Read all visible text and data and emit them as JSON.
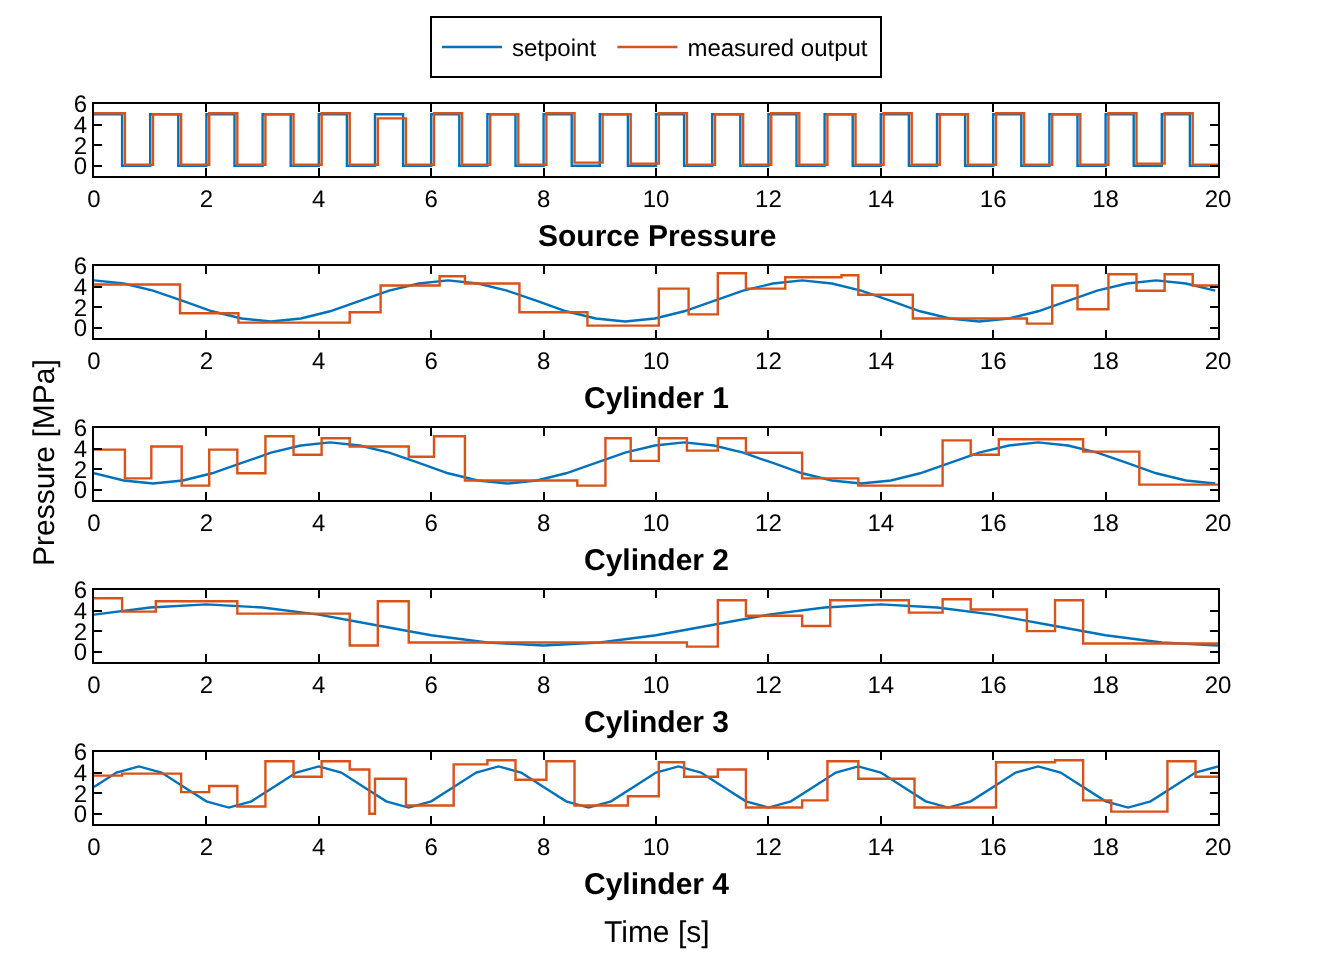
{
  "chart_data": [
    {
      "type": "step",
      "title": "Source Pressure",
      "legend": "top",
      "xlim": [
        0,
        20
      ],
      "ylim": [
        -1,
        6
      ],
      "xticks": [
        0,
        2,
        4,
        6,
        8,
        10,
        12,
        14,
        16,
        18,
        20
      ],
      "yticks": [
        0,
        2,
        4,
        6
      ],
      "grid": false,
      "series": [
        {
          "name": "setpoint",
          "color": "#0072bd",
          "x": [
            0,
            0.5,
            1,
            1.5,
            2,
            2.5,
            3,
            3.5,
            4,
            4.5,
            5,
            5.5,
            6,
            6.5,
            7,
            7.5,
            8,
            8.5,
            9,
            9.5,
            10,
            10.5,
            11,
            11.5,
            12,
            12.5,
            13,
            13.5,
            14,
            14.5,
            15,
            15.5,
            16,
            16.5,
            17,
            17.5,
            18,
            18.5,
            19,
            19.5,
            20
          ],
          "values": [
            5,
            0,
            5,
            0,
            5,
            0,
            5,
            0,
            5,
            0,
            5,
            0,
            5,
            0,
            5,
            0,
            5,
            0,
            5,
            0,
            5,
            0,
            5,
            0,
            5,
            0,
            5,
            0,
            5,
            0,
            5,
            0,
            5,
            0,
            5,
            0,
            5,
            0,
            5,
            0,
            0
          ]
        },
        {
          "name": "measured output",
          "color": "#d95319",
          "x": [
            0,
            0.55,
            1.05,
            1.55,
            2.05,
            2.55,
            3.05,
            3.55,
            4.05,
            4.55,
            5.05,
            5.55,
            6.05,
            6.55,
            7.05,
            7.55,
            8.05,
            8.55,
            9.05,
            9.55,
            10.05,
            10.55,
            11.05,
            11.55,
            12.05,
            12.55,
            13.05,
            13.55,
            14.05,
            14.55,
            15.05,
            15.55,
            16.05,
            16.55,
            17.05,
            17.55,
            18.05,
            18.55,
            19.05,
            19.55,
            20
          ],
          "values": [
            5.1,
            0.1,
            5.0,
            0.1,
            5.1,
            0.1,
            5.0,
            0.1,
            5.1,
            0.1,
            4.6,
            0.1,
            5.1,
            0.1,
            5.0,
            0.1,
            5.1,
            0.3,
            5.0,
            0.2,
            5.1,
            0.1,
            5.0,
            0.1,
            5.1,
            0.1,
            5.0,
            0.1,
            5.1,
            0.1,
            5.0,
            0.1,
            5.1,
            0.1,
            5.0,
            0.1,
            5.1,
            0.2,
            5.1,
            0.1,
            0.1
          ]
        }
      ]
    },
    {
      "type": "line",
      "title": "Cylinder 1",
      "xlim": [
        0,
        20
      ],
      "ylim": [
        -1,
        6
      ],
      "xticks": [
        0,
        2,
        4,
        6,
        8,
        10,
        12,
        14,
        16,
        18,
        20
      ],
      "yticks": [
        0,
        2,
        4,
        6
      ],
      "grid": false,
      "series": [
        {
          "color": "#0072bd",
          "x": [
            0,
            0.53,
            1.05,
            1.58,
            2.1,
            2.63,
            3.15,
            3.68,
            4.2,
            4.73,
            5.25,
            5.78,
            6.3,
            6.83,
            7.35,
            7.88,
            8.4,
            8.93,
            9.45,
            9.98,
            10.5,
            11.03,
            11.55,
            12.08,
            12.6,
            13.13,
            13.65,
            14.18,
            14.7,
            15.23,
            15.75,
            16.28,
            16.8,
            17.33,
            17.85,
            18.38,
            18.9,
            19.43,
            19.95
          ],
          "values": [
            4.6,
            4.3,
            3.6,
            2.6,
            1.6,
            0.9,
            0.6,
            0.9,
            1.6,
            2.6,
            3.6,
            4.3,
            4.6,
            4.3,
            3.6,
            2.6,
            1.6,
            0.9,
            0.6,
            0.9,
            1.6,
            2.6,
            3.6,
            4.3,
            4.6,
            4.3,
            3.6,
            2.6,
            1.6,
            0.9,
            0.6,
            0.9,
            1.6,
            2.6,
            3.6,
            4.3,
            4.6,
            4.3,
            3.6
          ]
        },
        {
          "type": "step",
          "color": "#d95319",
          "x": [
            0,
            1.53,
            2.57,
            4.55,
            5.1,
            6.15,
            6.6,
            7.57,
            8.78,
            10.05,
            10.58,
            11.1,
            11.6,
            12.3,
            13.3,
            13.6,
            14.57,
            16.6,
            17.05,
            17.5,
            18.05,
            18.55,
            19.05,
            19.55,
            20
          ],
          "values": [
            4.2,
            1.4,
            0.5,
            1.5,
            4.1,
            5.0,
            4.3,
            1.5,
            0.2,
            3.8,
            1.3,
            5.3,
            3.8,
            4.9,
            5.1,
            3.2,
            0.9,
            0.4,
            4.1,
            1.8,
            5.2,
            3.6,
            5.2,
            4.1,
            4.1
          ]
        }
      ]
    },
    {
      "type": "line",
      "title": "Cylinder 2",
      "ylabel": "Pressure [MPa]",
      "xlim": [
        0,
        20
      ],
      "ylim": [
        -1,
        6
      ],
      "xticks": [
        0,
        2,
        4,
        6,
        8,
        10,
        12,
        14,
        16,
        18,
        20
      ],
      "yticks": [
        0,
        2,
        4,
        6
      ],
      "grid": false,
      "series": [
        {
          "color": "#0072bd",
          "x": [
            0,
            0.53,
            1.05,
            1.58,
            2.1,
            2.63,
            3.15,
            3.68,
            4.2,
            4.73,
            5.25,
            5.78,
            6.3,
            6.83,
            7.35,
            7.88,
            8.4,
            8.93,
            9.45,
            9.98,
            10.5,
            11.03,
            11.55,
            12.08,
            12.6,
            13.13,
            13.65,
            14.18,
            14.7,
            15.23,
            15.75,
            16.28,
            16.8,
            17.33,
            17.85,
            18.38,
            18.9,
            19.43,
            19.95
          ],
          "values": [
            1.6,
            0.9,
            0.6,
            0.9,
            1.6,
            2.6,
            3.6,
            4.3,
            4.6,
            4.3,
            3.6,
            2.6,
            1.6,
            0.9,
            0.6,
            0.9,
            1.6,
            2.6,
            3.6,
            4.3,
            4.6,
            4.3,
            3.6,
            2.6,
            1.6,
            0.9,
            0.6,
            0.9,
            1.6,
            2.6,
            3.6,
            4.3,
            4.6,
            4.3,
            3.6,
            2.6,
            1.6,
            0.9,
            0.6
          ]
        },
        {
          "type": "step",
          "color": "#d95319",
          "x": [
            0,
            0.55,
            1.02,
            1.56,
            2.05,
            2.55,
            3.05,
            3.55,
            4.05,
            4.55,
            5.6,
            6.05,
            6.6,
            8.6,
            9.1,
            9.55,
            10.05,
            10.55,
            11.1,
            11.6,
            12.6,
            13.6,
            15.1,
            15.6,
            16.1,
            17.6,
            18.6,
            20
          ],
          "values": [
            3.9,
            1.1,
            4.2,
            0.4,
            3.9,
            1.6,
            5.2,
            3.4,
            5.0,
            4.2,
            3.2,
            5.2,
            0.9,
            0.4,
            5.0,
            2.8,
            5.0,
            3.8,
            5.0,
            3.6,
            1.1,
            0.4,
            4.8,
            3.4,
            4.9,
            3.7,
            0.5,
            0.5
          ]
        }
      ]
    },
    {
      "type": "line",
      "title": "Cylinder 3",
      "xlim": [
        0,
        20
      ],
      "ylim": [
        -1,
        6
      ],
      "xticks": [
        0,
        2,
        4,
        6,
        8,
        10,
        12,
        14,
        16,
        18,
        20
      ],
      "yticks": [
        0,
        2,
        4,
        6
      ],
      "grid": false,
      "series": [
        {
          "color": "#0072bd",
          "x": [
            0,
            1,
            2,
            3,
            4,
            5,
            6,
            7,
            8,
            9,
            10,
            11,
            12,
            13,
            14,
            15,
            16,
            17,
            18,
            19,
            20
          ],
          "values": [
            3.6,
            4.3,
            4.6,
            4.3,
            3.6,
            2.6,
            1.6,
            0.9,
            0.6,
            0.9,
            1.6,
            2.6,
            3.6,
            4.3,
            4.6,
            4.3,
            3.6,
            2.6,
            1.6,
            0.9,
            0.6
          ]
        },
        {
          "type": "step",
          "color": "#d95319",
          "x": [
            0,
            0.5,
            1.1,
            2.55,
            4.55,
            5.05,
            5.6,
            10.55,
            11.1,
            11.6,
            12.6,
            13.1,
            14.5,
            15.1,
            15.6,
            16.6,
            17.1,
            17.6,
            20
          ],
          "values": [
            5.2,
            3.9,
            4.9,
            3.7,
            0.6,
            4.9,
            0.9,
            0.5,
            5.0,
            3.5,
            2.5,
            5.0,
            3.8,
            5.1,
            4.1,
            2.0,
            5.0,
            0.8,
            0.8
          ]
        }
      ]
    },
    {
      "type": "line",
      "title": "Cylinder 4",
      "xlabel": "Time [s]",
      "xlim": [
        0,
        20
      ],
      "ylim": [
        -1,
        6
      ],
      "xticks": [
        0,
        2,
        4,
        6,
        8,
        10,
        12,
        14,
        16,
        18,
        20
      ],
      "yticks": [
        0,
        2,
        4,
        6
      ],
      "grid": false,
      "series": [
        {
          "color": "#0072bd",
          "x": [
            0,
            0.4,
            0.8,
            1.2,
            1.6,
            2,
            2.4,
            2.8,
            3.2,
            3.6,
            4,
            4.4,
            4.8,
            5.2,
            5.6,
            6,
            6.4,
            6.8,
            7.2,
            7.6,
            8,
            8.4,
            8.8,
            9.2,
            9.6,
            10,
            10.4,
            10.8,
            11.2,
            11.6,
            12,
            12.4,
            12.8,
            13.2,
            13.6,
            14,
            14.4,
            14.8,
            15.2,
            15.6,
            16,
            16.4,
            16.8,
            17.2,
            17.6,
            18,
            18.4,
            18.8,
            19.2,
            19.6,
            20
          ],
          "values": [
            2.6,
            4.0,
            4.6,
            4.0,
            2.6,
            1.2,
            0.6,
            1.2,
            2.6,
            4.0,
            4.6,
            4.0,
            2.6,
            1.2,
            0.6,
            1.2,
            2.6,
            4.0,
            4.6,
            4.0,
            2.6,
            1.2,
            0.6,
            1.2,
            2.6,
            4.0,
            4.6,
            4.0,
            2.6,
            1.2,
            0.6,
            1.2,
            2.6,
            4.0,
            4.6,
            4.0,
            2.6,
            1.2,
            0.6,
            1.2,
            2.6,
            4.0,
            4.6,
            4.0,
            2.6,
            1.2,
            0.6,
            1.2,
            2.6,
            4.0,
            4.6
          ]
        },
        {
          "type": "step",
          "color": "#d95319",
          "x": [
            0,
            0.5,
            1.55,
            2.05,
            2.55,
            3.05,
            3.55,
            4.05,
            4.55,
            4.9,
            5.0,
            5.55,
            6.4,
            7.0,
            7.5,
            8.05,
            8.55,
            9.5,
            10.05,
            10.5,
            11.1,
            11.6,
            12.6,
            13.05,
            13.6,
            14.6,
            16.05,
            17.1,
            17.6,
            18.1,
            19.1,
            19.6,
            20
          ],
          "values": [
            3.7,
            3.9,
            2.1,
            2.7,
            0.7,
            5.1,
            3.6,
            5.1,
            4.3,
            0.0,
            3.4,
            0.8,
            4.8,
            5.2,
            3.3,
            5.1,
            0.8,
            1.7,
            5.0,
            3.6,
            4.3,
            0.6,
            1.3,
            5.1,
            3.4,
            0.6,
            5.0,
            5.2,
            1.3,
            0.2,
            5.1,
            3.6,
            3.6
          ]
        }
      ]
    }
  ]
}
